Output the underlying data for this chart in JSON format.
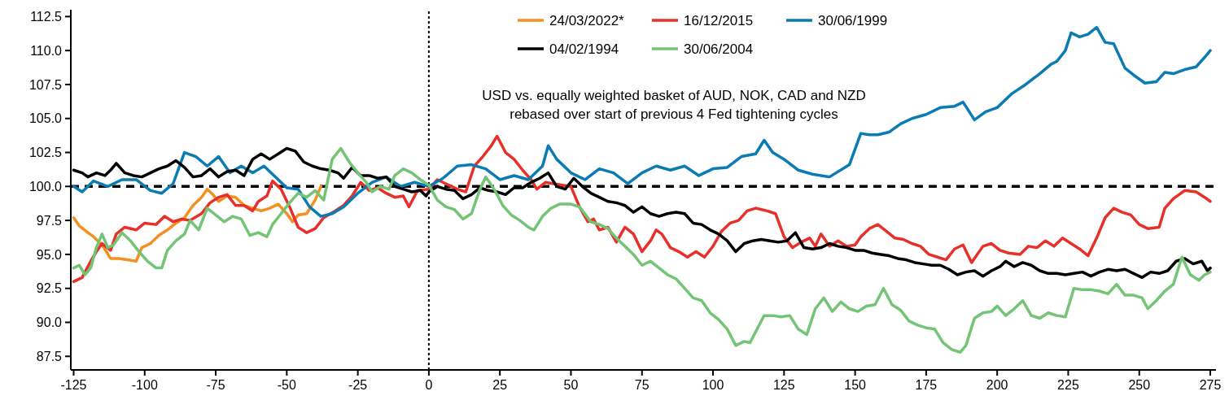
{
  "chart_data": {
    "type": "line",
    "annotations": [
      "USD vs. equally weighted basket of AUD, NOK, CAD and NZD\nrebased over start of previous 4 Fed tightening cycles"
    ],
    "xlim": [
      -126,
      277
    ],
    "xticks": [
      -125,
      -100,
      -75,
      -50,
      -25,
      0,
      25,
      50,
      75,
      100,
      125,
      150,
      175,
      200,
      225,
      250,
      275
    ],
    "ylim": [
      86.5,
      113
    ],
    "yticks": [
      {
        "value": 87.5,
        "label": "87.5"
      },
      {
        "value": 90,
        "label": "90.0"
      },
      {
        "value": 92.5,
        "label": "92.5"
      },
      {
        "value": 95,
        "label": "95.0"
      },
      {
        "value": 97.5,
        "label": "97.5"
      },
      {
        "value": 100,
        "label": "100.0"
      },
      {
        "value": 102.5,
        "label": "102.5"
      },
      {
        "value": 105,
        "label": "105.0"
      },
      {
        "value": 107.5,
        "label": "107.5"
      },
      {
        "value": 110,
        "label": "110.0"
      },
      {
        "value": 112.5,
        "label": "112.5"
      }
    ],
    "grid": false,
    "legend": "top",
    "marker": "none",
    "line_style": "solid",
    "ref_lines": [
      {
        "axis": "y",
        "value": 100,
        "color": "#000000",
        "line_style": "dashed"
      },
      {
        "axis": "x",
        "value": 0,
        "color": "#000000",
        "line_style": "dotted"
      }
    ],
    "series": [
      {
        "name": "24/03/2022*",
        "color": "#f39020",
        "x": [
          -125,
          -123,
          -120,
          -118,
          -115,
          -112,
          -109,
          -106,
          -103,
          -101,
          -98,
          -95,
          -92,
          -89,
          -86,
          -83,
          -80,
          -78,
          -76,
          -74,
          -71,
          -68,
          -65,
          -62,
          -59,
          -56,
          -53,
          -50,
          -48,
          -46,
          -43,
          -40,
          -38
        ],
        "values": [
          97.7,
          97.1,
          96.6,
          96.3,
          95.7,
          94.7,
          94.7,
          94.6,
          94.5,
          95.5,
          95.8,
          96.4,
          96.8,
          97.3,
          97.7,
          98.6,
          99.2,
          99.8,
          99.4,
          98.9,
          99.3,
          99.2,
          98.6,
          98.4,
          98.2,
          98.4,
          98.7,
          98.0,
          97.4,
          97.9,
          98.0,
          99.0,
          100.0
        ]
      },
      {
        "name": "16/12/2015",
        "color": "#e8302a",
        "x": [
          -125,
          -122,
          -119,
          -117,
          -115,
          -112,
          -110,
          -107,
          -103,
          -100,
          -96,
          -93,
          -90,
          -87,
          -84,
          -80,
          -77,
          -74,
          -71,
          -68,
          -65,
          -62,
          -60,
          -57,
          -55,
          -52,
          -49,
          -46,
          -43,
          -40,
          -37,
          -33,
          -30,
          -27,
          -24,
          -21,
          -18,
          -15,
          -12,
          -9,
          -7,
          -4,
          0,
          3,
          6,
          10,
          13,
          16,
          19,
          22,
          24,
          27,
          30,
          33,
          36,
          38,
          41,
          44,
          47,
          50,
          53,
          56,
          58,
          60,
          63,
          66,
          69,
          72,
          75,
          78,
          80,
          82,
          85,
          88,
          91,
          94,
          97,
          100,
          103,
          106,
          109,
          112,
          115,
          119,
          122,
          125,
          128,
          131,
          134,
          136,
          138,
          141,
          144,
          147,
          150,
          152,
          155,
          158,
          161,
          164,
          167,
          170,
          173,
          176,
          179,
          182,
          185,
          188,
          191,
          195,
          198,
          201,
          204,
          208,
          211,
          214,
          217,
          220,
          223,
          226,
          229,
          232,
          235,
          238,
          241,
          244,
          247,
          250,
          253,
          257,
          259,
          262,
          266,
          270,
          273,
          275
        ],
        "values": [
          93.0,
          93.3,
          94.5,
          95.2,
          95.8,
          95.3,
          96.5,
          97.0,
          96.8,
          97.3,
          97.2,
          97.8,
          97.4,
          97.6,
          97.5,
          98.0,
          98.8,
          99.2,
          99.4,
          98.6,
          98.6,
          98.2,
          98.9,
          99.3,
          100.4,
          99.8,
          98.5,
          97.0,
          96.6,
          96.9,
          97.7,
          98.2,
          98.6,
          99.3,
          100.3,
          99.7,
          99.9,
          99.5,
          99.2,
          99.3,
          98.5,
          99.7,
          99.8,
          100.5,
          100.2,
          99.8,
          99.6,
          101.5,
          102.2,
          103.0,
          103.7,
          102.5,
          102.0,
          101.2,
          100.5,
          99.8,
          100.3,
          100.2,
          100.1,
          100.0,
          98.5,
          97.4,
          97.6,
          96.8,
          97.0,
          95.9,
          97.0,
          96.5,
          95.2,
          96.0,
          96.8,
          96.5,
          95.5,
          95.2,
          94.8,
          95.2,
          94.8,
          95.6,
          96.7,
          97.3,
          97.5,
          98.2,
          98.4,
          98.2,
          98.0,
          96.3,
          95.5,
          95.9,
          96.2,
          95.6,
          96.5,
          95.6,
          96.0,
          95.6,
          95.7,
          96.3,
          96.9,
          97.2,
          96.7,
          96.2,
          96.1,
          95.8,
          95.6,
          95.0,
          94.8,
          94.6,
          95.4,
          95.7,
          94.4,
          95.6,
          95.8,
          95.3,
          95.1,
          95.0,
          95.6,
          95.5,
          96.0,
          95.6,
          96.2,
          95.8,
          95.4,
          94.9,
          96.2,
          97.7,
          98.4,
          98.1,
          97.9,
          97.2,
          96.9,
          97.0,
          98.4,
          99.1,
          99.7,
          99.6,
          99.2,
          98.9
        ]
      },
      {
        "name": "30/06/1999",
        "color": "#0a7bb3",
        "x": [
          -125,
          -122,
          -118,
          -113,
          -108,
          -103,
          -98,
          -94,
          -90,
          -86,
          -82,
          -78,
          -74,
          -70,
          -66,
          -62,
          -58,
          -53,
          -50,
          -46,
          -42,
          -38,
          -34,
          -30,
          -25,
          -20,
          -15,
          -10,
          -5,
          0,
          5,
          10,
          15,
          20,
          25,
          30,
          35,
          40,
          42,
          45,
          50,
          55,
          60,
          65,
          70,
          75,
          80,
          85,
          90,
          95,
          100,
          105,
          110,
          115,
          118,
          121,
          125,
          130,
          135,
          141,
          148,
          152,
          155,
          158,
          162,
          166,
          170,
          175,
          180,
          185,
          188,
          192,
          196,
          200,
          205,
          210,
          215,
          219,
          221,
          224,
          226,
          229,
          232,
          235,
          238,
          241,
          245,
          248,
          252,
          256,
          259,
          262,
          266,
          270,
          273,
          275
        ],
        "values": [
          100.0,
          99.6,
          100.4,
          100.0,
          100.5,
          100.5,
          99.7,
          99.5,
          100.2,
          102.5,
          102.2,
          101.5,
          102.2,
          101.0,
          101.5,
          101.0,
          101.5,
          100.5,
          99.9,
          99.8,
          98.5,
          97.8,
          98.0,
          98.5,
          99.5,
          100.3,
          100.7,
          100.0,
          100.3,
          100.0,
          100.6,
          101.5,
          101.6,
          101.3,
          100.5,
          100.8,
          100.5,
          101.5,
          103.0,
          102.0,
          101.0,
          100.5,
          101.3,
          101.0,
          100.2,
          101.0,
          101.5,
          101.2,
          101.5,
          100.8,
          101.3,
          101.4,
          102.2,
          102.4,
          103.4,
          102.5,
          102.0,
          101.2,
          100.9,
          100.7,
          101.6,
          103.9,
          103.8,
          103.8,
          104.0,
          104.6,
          105.0,
          105.3,
          105.8,
          105.9,
          106.2,
          104.9,
          105.5,
          105.8,
          106.8,
          107.5,
          108.3,
          109.0,
          109.2,
          110.0,
          111.3,
          111.0,
          111.2,
          111.7,
          110.6,
          110.5,
          108.7,
          108.2,
          107.6,
          107.7,
          108.4,
          108.3,
          108.6,
          108.8,
          109.5,
          110.0
        ]
      },
      {
        "name": "04/02/1994",
        "color": "#000000",
        "x": [
          -125,
          -122,
          -120,
          -117,
          -114,
          -112,
          -110,
          -107,
          -104,
          -101,
          -98,
          -95,
          -92,
          -89,
          -86,
          -83,
          -80,
          -77,
          -74,
          -71,
          -68,
          -65,
          -62,
          -59,
          -56,
          -53,
          -50,
          -47,
          -44,
          -41,
          -38,
          -35,
          -32,
          -30,
          -27,
          -24,
          -21,
          -18,
          -15,
          -12,
          -9,
          -6,
          -3,
          -1,
          0,
          3,
          6,
          9,
          12,
          15,
          18,
          21,
          24,
          27,
          30,
          33,
          36,
          39,
          42,
          45,
          48,
          51,
          54,
          57,
          60,
          63,
          66,
          69,
          72,
          75,
          78,
          81,
          84,
          87,
          90,
          93,
          96,
          99,
          102,
          105,
          108,
          111,
          114,
          117,
          120,
          123,
          126,
          129,
          132,
          135,
          138,
          141,
          144,
          147,
          150,
          153,
          156,
          159,
          162,
          165,
          168,
          171,
          174,
          177,
          180,
          183,
          186,
          189,
          192,
          195,
          198,
          201,
          203,
          206,
          209,
          212,
          215,
          218,
          221,
          224,
          227,
          230,
          233,
          236,
          239,
          242,
          245,
          248,
          251,
          254,
          257,
          260,
          263,
          266,
          269,
          272,
          274,
          275
        ],
        "values": [
          101.2,
          101.0,
          100.7,
          101.0,
          100.8,
          101.2,
          101.7,
          101.0,
          100.8,
          100.7,
          101.0,
          101.3,
          101.5,
          101.9,
          101.4,
          100.7,
          100.8,
          101.3,
          100.7,
          101.1,
          101.2,
          100.8,
          102.0,
          102.4,
          102.0,
          102.4,
          102.8,
          102.6,
          101.8,
          101.5,
          101.3,
          101.2,
          101.0,
          100.6,
          101.4,
          100.8,
          100.8,
          100.6,
          100.7,
          100.0,
          99.8,
          99.6,
          99.7,
          99.3,
          99.6,
          100.0,
          99.8,
          99.7,
          99.1,
          99.4,
          99.9,
          99.7,
          99.6,
          99.4,
          99.9,
          99.9,
          100.3,
          100.6,
          101.0,
          100.0,
          99.8,
          100.6,
          100.0,
          99.5,
          99.2,
          98.9,
          98.8,
          98.6,
          98.1,
          98.5,
          98.0,
          97.8,
          98.0,
          98.1,
          98.0,
          97.3,
          97.2,
          96.8,
          96.5,
          96.0,
          95.2,
          95.8,
          96.0,
          96.1,
          96.0,
          95.9,
          96.0,
          96.6,
          95.5,
          95.4,
          95.5,
          95.8,
          95.6,
          95.5,
          95.3,
          95.3,
          95.1,
          95.0,
          94.9,
          94.7,
          94.6,
          94.4,
          94.3,
          94.2,
          94.2,
          93.9,
          93.5,
          93.7,
          93.8,
          93.4,
          93.8,
          94.1,
          94.5,
          94.1,
          94.4,
          94.2,
          93.8,
          93.6,
          93.6,
          93.5,
          93.6,
          93.7,
          93.4,
          93.7,
          93.9,
          93.8,
          93.9,
          93.6,
          93.3,
          93.7,
          93.6,
          93.8,
          94.5,
          94.7,
          94.3,
          94.5,
          93.8,
          94.0
        ]
      },
      {
        "name": "30/06/2004",
        "color": "#74c476",
        "x": [
          -125,
          -123,
          -121,
          -119,
          -117,
          -115,
          -113,
          -111,
          -108,
          -105,
          -102,
          -99,
          -96,
          -94,
          -92,
          -89,
          -86,
          -84,
          -81,
          -78,
          -75,
          -72,
          -69,
          -66,
          -63,
          -60,
          -57,
          -55,
          -52,
          -49,
          -46,
          -43,
          -40,
          -37,
          -34,
          -31,
          -28,
          -25,
          -22,
          -20,
          -17,
          -14,
          -12,
          -9,
          -6,
          -3,
          0,
          3,
          6,
          9,
          12,
          15,
          18,
          20,
          23,
          26,
          29,
          32,
          35,
          37,
          40,
          43,
          46,
          50,
          53,
          57,
          60,
          63,
          66,
          69,
          72,
          75,
          78,
          81,
          84,
          87,
          90,
          93,
          96,
          99,
          102,
          105,
          108,
          111,
          113,
          115,
          118,
          121,
          124,
          127,
          130,
          133,
          136,
          139,
          142,
          145,
          148,
          151,
          154,
          157,
          160,
          163,
          166,
          169,
          172,
          175,
          178,
          181,
          184,
          187,
          189,
          192,
          195,
          198,
          200,
          203,
          206,
          209,
          212,
          215,
          218,
          221,
          224,
          227,
          230,
          233,
          236,
          239,
          242,
          245,
          248,
          251,
          253,
          256,
          259,
          262,
          265,
          268,
          271,
          273,
          275
        ],
        "values": [
          94.0,
          94.2,
          93.5,
          94.0,
          95.5,
          96.5,
          95.5,
          95.7,
          96.6,
          96.0,
          95.2,
          94.5,
          94.0,
          94.0,
          95.3,
          96.0,
          96.5,
          97.5,
          96.8,
          98.4,
          97.9,
          97.4,
          97.8,
          97.6,
          96.4,
          96.6,
          96.3,
          97.2,
          98.0,
          98.8,
          99.5,
          99.2,
          99.7,
          99.0,
          102.0,
          102.8,
          101.8,
          101.0,
          100.3,
          99.6,
          100.0,
          99.8,
          100.8,
          101.3,
          101.0,
          100.5,
          100.1,
          99.0,
          98.5,
          98.3,
          97.6,
          98.0,
          99.8,
          100.7,
          99.8,
          98.6,
          97.9,
          97.5,
          97.0,
          96.8,
          97.8,
          98.4,
          98.7,
          98.7,
          98.5,
          97.4,
          97.2,
          96.9,
          96.2,
          95.6,
          95.0,
          94.2,
          94.5,
          94.0,
          93.5,
          93.2,
          92.5,
          91.8,
          91.6,
          90.7,
          90.2,
          89.5,
          88.3,
          88.6,
          88.5,
          89.3,
          90.5,
          90.5,
          90.4,
          90.5,
          89.5,
          89.1,
          91.0,
          91.8,
          90.8,
          91.5,
          91.0,
          90.8,
          91.2,
          91.3,
          92.5,
          91.3,
          90.9,
          90.1,
          89.8,
          89.6,
          89.5,
          88.5,
          88.0,
          87.8,
          88.3,
          90.3,
          90.7,
          90.8,
          91.2,
          90.5,
          91.0,
          91.6,
          90.5,
          90.3,
          90.7,
          90.5,
          90.4,
          92.5,
          92.4,
          92.4,
          92.3,
          92.1,
          92.8,
          92.0,
          92.0,
          91.8,
          91.0,
          91.6,
          92.3,
          92.8,
          94.8,
          93.5,
          93.1,
          93.5,
          93.7
        ]
      }
    ]
  }
}
